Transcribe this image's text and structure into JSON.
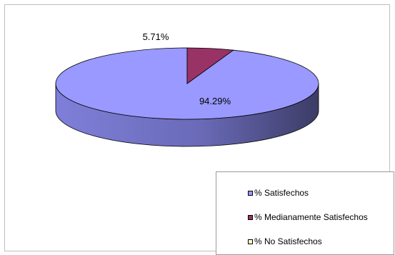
{
  "chart_data": {
    "type": "pie",
    "style": "3d",
    "series": [
      {
        "name": "% Satisfechos",
        "value": 94.29,
        "label": "94.29%",
        "color": "#9999FF",
        "side_color": "#5c5caa"
      },
      {
        "name": "% Medianamente Satisfechos",
        "value": 5.71,
        "label": "5.71%",
        "color": "#993366",
        "side_color": "#5e1f40"
      },
      {
        "name": "% No Satisfechos",
        "value": 0,
        "label": "",
        "color": "#FFFFCC",
        "side_color": "#cccc99"
      }
    ],
    "legend_position": "bottom-right"
  }
}
